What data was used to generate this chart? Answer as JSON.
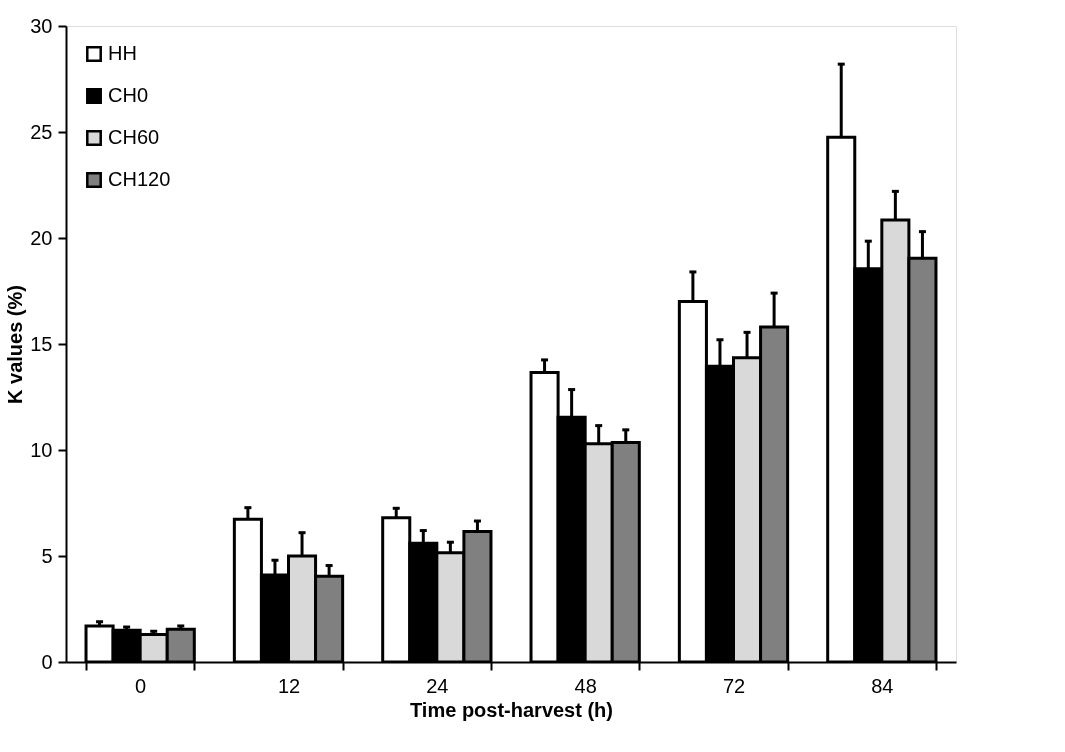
{
  "chart_data": {
    "type": "bar",
    "xlabel": "Time post-harvest (h)",
    "ylabel": "K values (%)",
    "categories": [
      "0",
      "12",
      "24",
      "48",
      "72",
      "84"
    ],
    "ylim": [
      0,
      30
    ],
    "yticks": [
      0,
      5,
      10,
      15,
      20,
      25,
      30
    ],
    "grid": false,
    "legend": "top left",
    "series": [
      {
        "name": "HH",
        "color": "#ffffff",
        "values": [
          1.7,
          6.73,
          6.8,
          13.65,
          17.0,
          24.75
        ],
        "errors": [
          0.2,
          0.55,
          0.45,
          0.6,
          1.4,
          3.45
        ]
      },
      {
        "name": "CH0",
        "color": "#000000",
        "values": [
          1.5,
          4.1,
          5.6,
          11.55,
          13.95,
          18.55
        ],
        "errors": [
          0.15,
          0.7,
          0.6,
          1.3,
          1.25,
          1.3
        ]
      },
      {
        "name": "CH60",
        "color": "#d9d9d9",
        "values": [
          1.3,
          5.0,
          5.15,
          10.3,
          14.35,
          20.85
        ],
        "errors": [
          0.15,
          1.1,
          0.5,
          0.85,
          1.2,
          1.35
        ]
      },
      {
        "name": "CH120",
        "color": "#808080",
        "values": [
          1.55,
          4.05,
          6.15,
          10.35,
          15.8,
          19.05
        ],
        "errors": [
          0.15,
          0.5,
          0.5,
          0.6,
          1.6,
          1.25
        ]
      }
    ]
  }
}
